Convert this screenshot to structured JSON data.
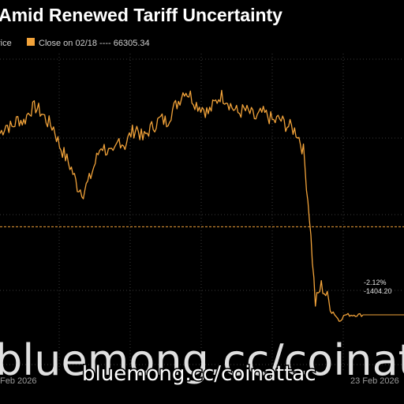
{
  "chart_data": {
    "type": "line",
    "title": "Amid Renewed Tariff Uncertainty",
    "legend": [
      {
        "label": "rice",
        "style": "solid",
        "color": "#f2a33a"
      },
      {
        "label": "Close on 02/18 ---- 66305.34",
        "style": "dashed",
        "color": "#f2a33a"
      }
    ],
    "x_tick_labels": [
      "Feb 2026",
      "23 Feb 2026"
    ],
    "reference_line": {
      "label": "Close on 02/18",
      "value": 66305.34
    },
    "series": [
      {
        "color": "#f2a33a",
        "values": [
          67900,
          68050,
          68000,
          68150,
          68100,
          68300,
          68350,
          68250,
          68100,
          68000,
          67700,
          67500,
          67300,
          67000,
          66900,
          67100,
          67400,
          67700,
          67600,
          67500,
          67800,
          67700,
          67900,
          68000,
          67800,
          67950,
          68050,
          68150,
          68100,
          68300,
          68450,
          68650,
          68550,
          68400,
          68350,
          68250,
          68400,
          68550,
          68500,
          68350,
          68250,
          68300,
          68250,
          68150,
          68250,
          68200,
          68100,
          68150,
          68050,
          68000,
          67900,
          67600,
          66500,
          65000,
          65300,
          65100,
          64850,
          64700,
          64800,
          64800,
          64800,
          64800
        ]
      }
    ],
    "callouts": [
      "-2.12%",
      "-1404.20"
    ],
    "grid": true
  },
  "watermark": {
    "large": "bluemong.cc/coinattac",
    "small": "bluemong.cc/coinattac"
  }
}
